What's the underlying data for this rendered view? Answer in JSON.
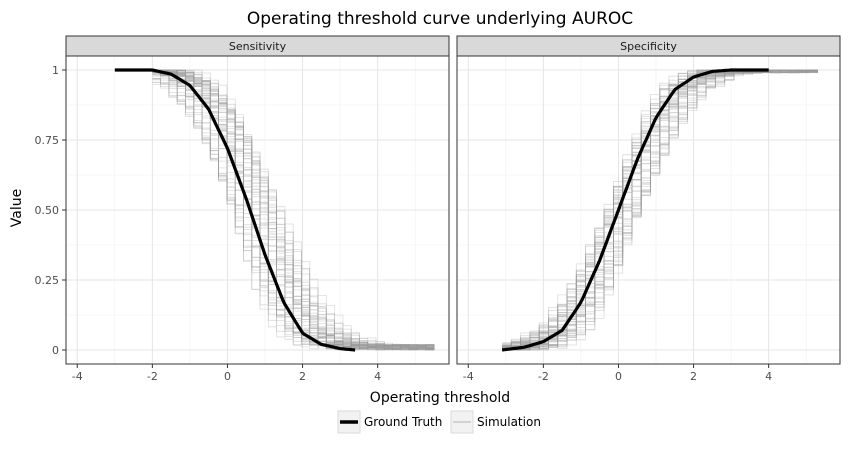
{
  "chart_data": {
    "type": "line",
    "title": "Operating threshold curve underlying AUROC",
    "xlabel": "Operating threshold",
    "ylabel": "Value",
    "xlim": [
      -4.3,
      5.9
    ],
    "ylim": [
      -0.05,
      1.05
    ],
    "x_ticks": [
      -4,
      -2,
      0,
      2,
      4
    ],
    "x_tick_labels": [
      "-4",
      "-2",
      "0",
      "2",
      "4"
    ],
    "y_ticks": [
      0,
      0.25,
      0.5,
      0.75,
      1
    ],
    "y_tick_labels": [
      "0",
      "0.25",
      "0.50",
      "0.75",
      "1"
    ],
    "grid": true,
    "legend_position": "bottom",
    "legend": [
      {
        "label": "Ground Truth",
        "color": "#000000",
        "style": "thick"
      },
      {
        "label": "Simulation",
        "color": "#b3b3b3",
        "style": "thin"
      }
    ],
    "panels": [
      {
        "label": "Sensitivity",
        "ground_truth": {
          "name": "Ground Truth",
          "x": [
            -3.0,
            -2.0,
            -1.5,
            -1.0,
            -0.5,
            0.0,
            0.5,
            1.0,
            1.5,
            2.0,
            2.5,
            3.0,
            3.4
          ],
          "y": [
            1.0,
            1.0,
            0.985,
            0.945,
            0.86,
            0.72,
            0.54,
            0.34,
            0.17,
            0.06,
            0.02,
            0.005,
            0.0
          ]
        },
        "simulation": {
          "name": "Simulation",
          "n_runs": 60,
          "x_range": [
            -2.0,
            5.5
          ],
          "center_x": [
            -2.0,
            -1.5,
            -1.0,
            -0.5,
            0.0,
            0.5,
            1.0,
            1.5,
            2.0,
            2.5,
            3.0,
            3.5,
            4.0,
            5.0
          ],
          "center_y": [
            1.0,
            0.985,
            0.945,
            0.86,
            0.72,
            0.54,
            0.34,
            0.17,
            0.07,
            0.03,
            0.015,
            0.01,
            0.01,
            0.01
          ],
          "spread": 0.6
        }
      },
      {
        "label": "Specificity",
        "ground_truth": {
          "name": "Ground Truth",
          "x": [
            -3.1,
            -2.5,
            -2.0,
            -1.5,
            -1.0,
            -0.5,
            0.0,
            0.5,
            1.0,
            1.5,
            2.0,
            2.5,
            3.0,
            4.0
          ],
          "y": [
            0.0,
            0.01,
            0.03,
            0.07,
            0.17,
            0.32,
            0.5,
            0.68,
            0.83,
            0.93,
            0.975,
            0.995,
            1.0,
            1.0
          ]
        },
        "simulation": {
          "name": "Simulation",
          "n_runs": 60,
          "x_range": [
            -3.1,
            5.3
          ],
          "center_x": [
            -3.1,
            -2.5,
            -2.0,
            -1.5,
            -1.0,
            -0.5,
            0.0,
            0.5,
            1.0,
            1.5,
            2.0,
            2.5,
            3.0,
            4.0,
            5.3
          ],
          "center_y": [
            0.0,
            0.01,
            0.03,
            0.07,
            0.17,
            0.32,
            0.5,
            0.68,
            0.83,
            0.93,
            0.975,
            0.995,
            1.0,
            1.0,
            1.0
          ],
          "spread": 0.45
        }
      }
    ]
  }
}
